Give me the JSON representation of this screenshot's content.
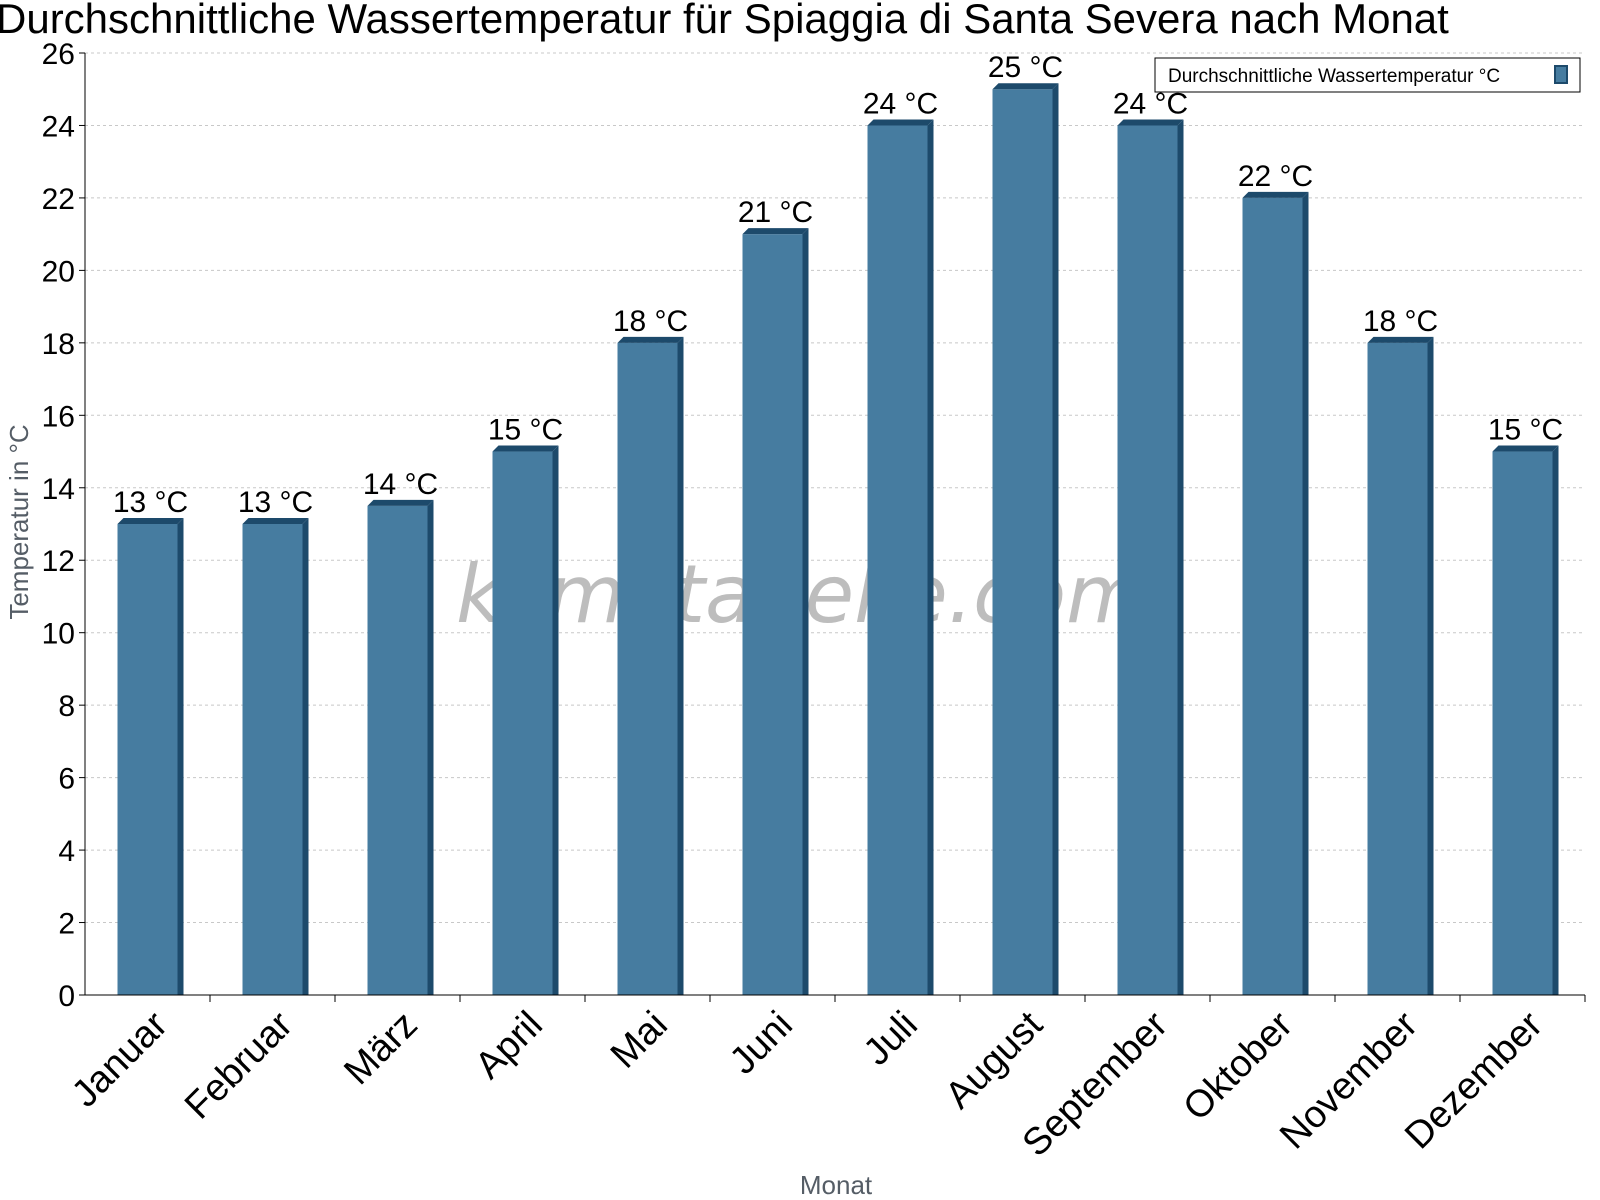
{
  "chart_data": {
    "type": "bar",
    "title": "Durchschnittliche Wassertemperatur für Spiaggia di Santa Severa nach Monat",
    "xlabel": "Monat",
    "ylabel": "Temperatur in °C",
    "ylim": [
      0,
      26
    ],
    "ytick_step": 2,
    "grid": true,
    "legend_position": "top-right",
    "watermark": "klimatabelle.com",
    "bar_color": "#467ca0",
    "bar_edge_color": "#1d4a6b",
    "unit_suffix": " °C",
    "categories": [
      "Januar",
      "Februar",
      "März",
      "April",
      "Mai",
      "Juni",
      "Juli",
      "August",
      "September",
      "Oktober",
      "November",
      "Dezember"
    ],
    "series": [
      {
        "name": "Durchschnittliche Wassertemperatur °C",
        "values": [
          13,
          13,
          13.5,
          15,
          18,
          21,
          24,
          25,
          24,
          22,
          18,
          15
        ],
        "labels": [
          "13 °C",
          "13 °C",
          "14 °C",
          "15 °C",
          "18 °C",
          "21 °C",
          "24 °C",
          "25 °C",
          "24 °C",
          "22 °C",
          "18 °C",
          "15 °C"
        ]
      }
    ]
  }
}
